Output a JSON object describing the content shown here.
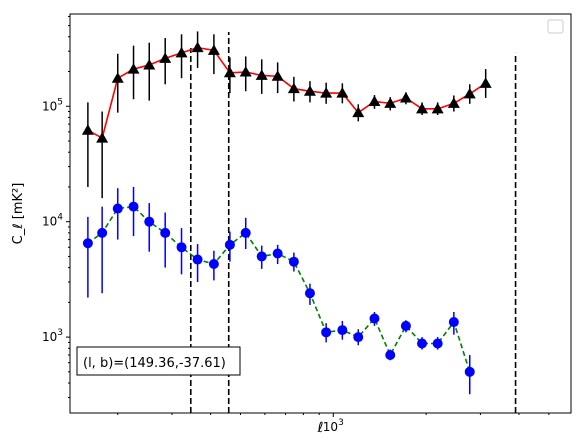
{
  "chart_data": {
    "type": "scatter",
    "title": "",
    "xlabel": "ℓ",
    "ylabel": "C_ℓ [mK²]",
    "xscale": "log",
    "yscale": "log",
    "xlim": [
      140,
      5900
    ],
    "ylim": [
      220,
      630000
    ],
    "x_tick_labels": [
      {
        "value": 1000,
        "label": "10^3"
      }
    ],
    "y_tick_labels": [
      {
        "value": 1000,
        "label": "10^3"
      },
      {
        "value": 10000,
        "label": "10^4"
      },
      {
        "value": 100000,
        "label": "10^5"
      }
    ],
    "grid": false,
    "legend": {
      "position": "top-right",
      "entries": []
    },
    "annotation": "(l, b)=(149.36,-37.61)",
    "vertical_lines": [
      {
        "x": 345,
        "y_top": 320000
      },
      {
        "x": 458,
        "y_top": 440000
      },
      {
        "x": 3900,
        "y_top": 290000
      }
    ],
    "series": [
      {
        "marker": "triangle",
        "color": "#000000",
        "line_color": "#ff0000",
        "line_style": "solid",
        "errorbar_color": "#000000",
        "points": [
          {
            "x": 160,
            "y": 62000,
            "lo": 20000,
            "hi": 108000
          },
          {
            "x": 178,
            "y": 53000,
            "lo": 16000,
            "hi": 90000
          },
          {
            "x": 200,
            "y": 175000,
            "lo": 88000,
            "hi": 285000
          },
          {
            "x": 225,
            "y": 210000,
            "lo": 115000,
            "hi": 335000
          },
          {
            "x": 253,
            "y": 228000,
            "lo": 112000,
            "hi": 355000
          },
          {
            "x": 285,
            "y": 260000,
            "lo": 155000,
            "hi": 390000
          },
          {
            "x": 322,
            "y": 290000,
            "lo": 175000,
            "hi": 420000
          },
          {
            "x": 363,
            "y": 322000,
            "lo": 215000,
            "hi": 445000
          },
          {
            "x": 410,
            "y": 305000,
            "lo": 190000,
            "hi": 420000
          },
          {
            "x": 462,
            "y": 195000,
            "lo": 130000,
            "hi": 265000
          },
          {
            "x": 520,
            "y": 198000,
            "lo": 135000,
            "hi": 270000
          },
          {
            "x": 586,
            "y": 185000,
            "lo": 128000,
            "hi": 255000
          },
          {
            "x": 660,
            "y": 182000,
            "lo": 130000,
            "hi": 240000
          },
          {
            "x": 745,
            "y": 142000,
            "lo": 110000,
            "hi": 180000
          },
          {
            "x": 840,
            "y": 135000,
            "lo": 108000,
            "hi": 165000
          },
          {
            "x": 948,
            "y": 130000,
            "lo": 105000,
            "hi": 160000
          },
          {
            "x": 1070,
            "y": 130000,
            "lo": 106000,
            "hi": 158000
          },
          {
            "x": 1205,
            "y": 88000,
            "lo": 74000,
            "hi": 104000
          },
          {
            "x": 1360,
            "y": 110000,
            "lo": 95000,
            "hi": 125000
          },
          {
            "x": 1530,
            "y": 106000,
            "lo": 92000,
            "hi": 120000
          },
          {
            "x": 1720,
            "y": 118000,
            "lo": 104000,
            "hi": 132000
          },
          {
            "x": 1940,
            "y": 95000,
            "lo": 84000,
            "hi": 108000
          },
          {
            "x": 2180,
            "y": 95000,
            "lo": 84000,
            "hi": 108000
          },
          {
            "x": 2460,
            "y": 106000,
            "lo": 90000,
            "hi": 124000
          },
          {
            "x": 2770,
            "y": 128000,
            "lo": 105000,
            "hi": 155000
          },
          {
            "x": 3120,
            "y": 158000,
            "lo": 118000,
            "hi": 210000
          }
        ]
      },
      {
        "marker": "circle",
        "color": "#0000ff",
        "line_color": "#008000",
        "line_style": "dashed",
        "errorbar_color": "#0000ff",
        "points": [
          {
            "x": 160,
            "y": 6500,
            "lo": 2200,
            "hi": 11000
          },
          {
            "x": 178,
            "y": 8000,
            "lo": 2400,
            "hi": 13500
          },
          {
            "x": 200,
            "y": 13000,
            "lo": 7000,
            "hi": 19500
          },
          {
            "x": 225,
            "y": 13500,
            "lo": 7500,
            "hi": 20000
          },
          {
            "x": 253,
            "y": 10000,
            "lo": 5500,
            "hi": 14500
          },
          {
            "x": 285,
            "y": 8000,
            "lo": 4000,
            "hi": 12000
          },
          {
            "x": 322,
            "y": 6000,
            "lo": 3500,
            "hi": 8800
          },
          {
            "x": 363,
            "y": 4700,
            "lo": 3000,
            "hi": 6400
          },
          {
            "x": 410,
            "y": 4300,
            "lo": 3100,
            "hi": 5600
          },
          {
            "x": 462,
            "y": 6300,
            "lo": 4500,
            "hi": 8200
          },
          {
            "x": 520,
            "y": 8000,
            "lo": 5800,
            "hi": 10800
          },
          {
            "x": 586,
            "y": 5000,
            "lo": 3900,
            "hi": 6200
          },
          {
            "x": 660,
            "y": 5300,
            "lo": 4300,
            "hi": 6300
          },
          {
            "x": 745,
            "y": 4500,
            "lo": 3700,
            "hi": 5400
          },
          {
            "x": 840,
            "y": 2400,
            "lo": 1900,
            "hi": 2900
          },
          {
            "x": 948,
            "y": 1100,
            "lo": 900,
            "hi": 1320
          },
          {
            "x": 1070,
            "y": 1150,
            "lo": 950,
            "hi": 1380
          },
          {
            "x": 1205,
            "y": 1000,
            "lo": 850,
            "hi": 1170
          },
          {
            "x": 1360,
            "y": 1450,
            "lo": 1250,
            "hi": 1650
          },
          {
            "x": 1530,
            "y": 700,
            "lo": 630,
            "hi": 780
          },
          {
            "x": 1720,
            "y": 1250,
            "lo": 1100,
            "hi": 1400
          },
          {
            "x": 1940,
            "y": 880,
            "lo": 780,
            "hi": 1000
          },
          {
            "x": 2180,
            "y": 880,
            "lo": 780,
            "hi": 1000
          },
          {
            "x": 2460,
            "y": 1350,
            "lo": 1050,
            "hi": 1650
          },
          {
            "x": 2770,
            "y": 500,
            "lo": 320,
            "hi": 700
          }
        ]
      }
    ]
  }
}
